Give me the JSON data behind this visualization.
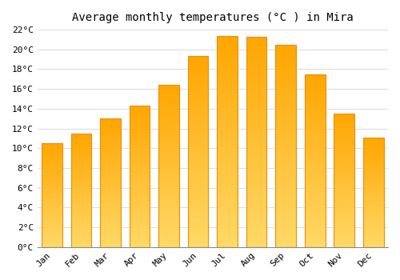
{
  "title": "Average monthly temperatures (°C ) in Mira",
  "months": [
    "Jan",
    "Feb",
    "Mar",
    "Apr",
    "May",
    "Jun",
    "Jul",
    "Aug",
    "Sep",
    "Oct",
    "Nov",
    "Dec"
  ],
  "values": [
    10.5,
    11.5,
    13.0,
    14.3,
    16.4,
    19.3,
    21.4,
    21.3,
    20.5,
    17.5,
    13.5,
    11.1
  ],
  "bar_color_main": "#FFA500",
  "bar_color_light": "#FFD966",
  "bar_edge_color": "#E8900A",
  "ylim": [
    0,
    22
  ],
  "yticks": [
    0,
    2,
    4,
    6,
    8,
    10,
    12,
    14,
    16,
    18,
    20,
    22
  ],
  "background_color": "#FFFFFF",
  "grid_color": "#DDDDDD",
  "title_fontsize": 10,
  "tick_fontsize": 8,
  "font_family": "monospace"
}
